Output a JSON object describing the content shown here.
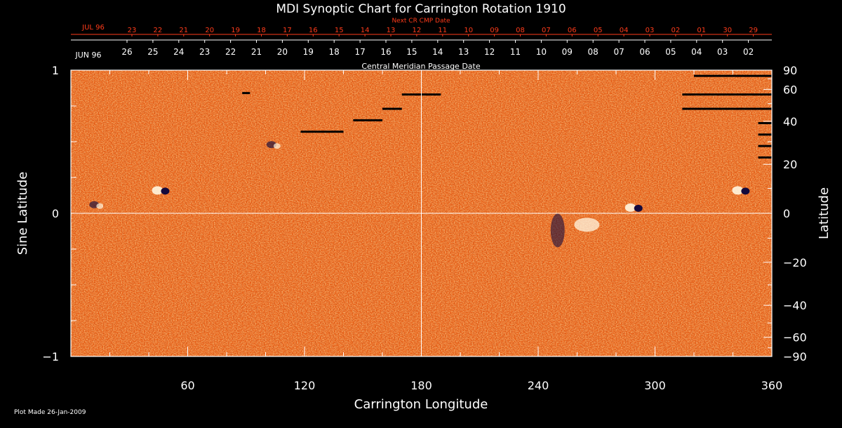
{
  "chart_data": {
    "type": "heatmap",
    "title": "MDI Synoptic Chart for Carrington Rotation 1910",
    "xlabel": "Carrington Longitude",
    "ylabel_left": "Sine Latitude",
    "ylabel_right": "Latitude",
    "xlim": [
      0,
      360
    ],
    "ylim": [
      -1,
      1
    ],
    "x_ticks": [
      60,
      120,
      180,
      240,
      300,
      360
    ],
    "x_minor_step": 20,
    "y_ticks_left": [
      {
        "v": 1,
        "label": "1"
      },
      {
        "v": 0,
        "label": "0"
      },
      {
        "v": -1,
        "label": "−1"
      }
    ],
    "y_minor_left": [
      0.75,
      0.5,
      0.25,
      -0.25,
      -0.5,
      -0.75
    ],
    "y_ticks_right": [
      {
        "deg": 90,
        "label": "90"
      },
      {
        "deg": 60,
        "label": "60"
      },
      {
        "deg": 40,
        "label": "40"
      },
      {
        "deg": 20,
        "label": "20"
      },
      {
        "deg": 0,
        "label": "0"
      },
      {
        "deg": -20,
        "label": "−20"
      },
      {
        "deg": -40,
        "label": "−40"
      },
      {
        "deg": -60,
        "label": "−60"
      },
      {
        "deg": -90,
        "label": "−90"
      }
    ],
    "y_minor_right_deg": [
      70,
      50,
      30,
      10,
      -10,
      -30,
      -50,
      -70
    ],
    "crosshair": {
      "x": 180,
      "y": 0
    },
    "top_axes": {
      "next_cr_label": "Next CR CMP Date",
      "next_cr_month": "JUL 96",
      "next_cr_days": [
        "23",
        "22",
        "21",
        "20",
        "19",
        "18",
        "17",
        "16",
        "15",
        "14",
        "13",
        "12",
        "11",
        "10",
        "09",
        "08",
        "07",
        "06",
        "05",
        "04",
        "03",
        "02",
        "01",
        "30",
        "29"
      ],
      "cmp_month": "JUN 96",
      "cmp_days": [
        "26",
        "25",
        "24",
        "23",
        "22",
        "21",
        "20",
        "19",
        "18",
        "17",
        "16",
        "15",
        "14",
        "13",
        "12",
        "11",
        "10",
        "09",
        "08",
        "07",
        "06",
        "05",
        "04",
        "03",
        "02"
      ],
      "cmp_label": "Central Meridian Passage Date"
    },
    "active_regions": [
      {
        "lon": 47,
        "lat": 0.16,
        "polarity": "bipolar"
      },
      {
        "lon": 12,
        "lat": 0.06,
        "polarity": "mixed"
      },
      {
        "lon": 103,
        "lat": 0.48,
        "polarity": "mixed"
      },
      {
        "lon": 250,
        "lat": -0.12,
        "polarity": "negative"
      },
      {
        "lon": 265,
        "lat": -0.08,
        "polarity": "positive"
      },
      {
        "lon": 290,
        "lat": 0.04,
        "polarity": "bipolar"
      },
      {
        "lon": 345,
        "lat": 0.16,
        "polarity": "bipolar"
      }
    ],
    "missing_data_bars": [
      {
        "lon": [
          170,
          190
        ],
        "lat": 0.83
      },
      {
        "lon": [
          160,
          170
        ],
        "lat": 0.73
      },
      {
        "lon": [
          145,
          160
        ],
        "lat": 0.65
      },
      {
        "lon": [
          118,
          140
        ],
        "lat": 0.57
      },
      {
        "lon": [
          88,
          92
        ],
        "lat": 0.84
      },
      {
        "lon": [
          320,
          360
        ],
        "lat": 0.96
      },
      {
        "lon": [
          314,
          360
        ],
        "lat": 0.83
      },
      {
        "lon": [
          314,
          360
        ],
        "lat": 0.73
      },
      {
        "lon": [
          353,
          360
        ],
        "lat": 0.63
      },
      {
        "lon": [
          353,
          360
        ],
        "lat": 0.55
      },
      {
        "lon": [
          353,
          360
        ],
        "lat": 0.47
      },
      {
        "lon": [
          353,
          360
        ],
        "lat": 0.39
      }
    ]
  },
  "colors": {
    "background": "#000000",
    "field_base": "#e65a12",
    "field_light": "#ff8a1e",
    "field_dark": "#b8340a",
    "positive": "#fff6e0",
    "negative": "#140a3c",
    "top_axis_red": "#ff3b1a"
  },
  "footer": {
    "plot_made": "Plot Made 26-Jan-2009"
  }
}
